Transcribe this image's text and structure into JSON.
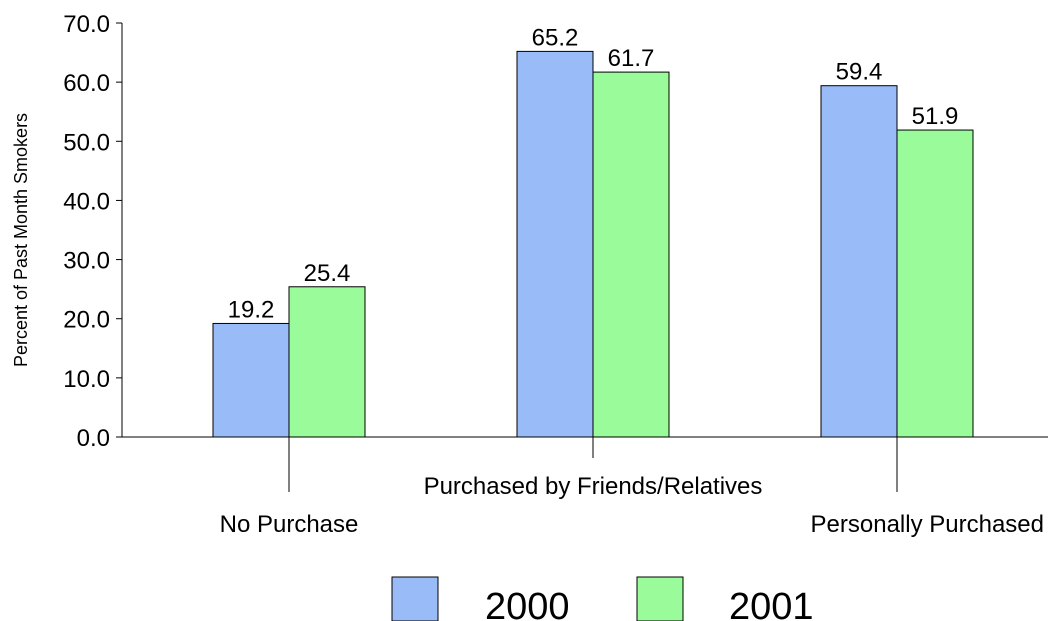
{
  "chart_data": {
    "type": "bar",
    "categories": [
      "No Purchase",
      "Purchased by Friends/Relatives",
      "Personally Purchased"
    ],
    "series": [
      {
        "name": "2000",
        "values": [
          19.2,
          65.2,
          59.4
        ],
        "color": "#99bbf7"
      },
      {
        "name": "2001",
        "values": [
          25.4,
          61.7,
          51.9
        ],
        "color": "#99fb99"
      }
    ],
    "ylabel": "Percent of Past Month Smokers",
    "ylim": [
      0,
      70
    ],
    "yticks": [
      "0.0",
      "10.0",
      "20.0",
      "30.0",
      "40.0",
      "50.0",
      "60.0",
      "70.0"
    ],
    "data_labels": [
      [
        "19.2",
        "65.2",
        "59.4"
      ],
      [
        "25.4",
        "61.7",
        "51.9"
      ]
    ],
    "legend": {
      "position": "bottom",
      "entries": [
        "2000",
        "2001"
      ]
    },
    "grid": false
  }
}
